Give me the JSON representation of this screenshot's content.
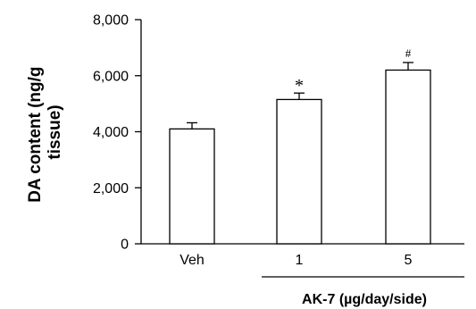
{
  "chart_data": {
    "type": "bar",
    "categories": [
      "Veh",
      "1",
      "5"
    ],
    "values": [
      4100,
      5150,
      6200
    ],
    "errors": [
      220,
      230,
      270
    ],
    "significance": [
      "",
      "*",
      "#"
    ],
    "title": "",
    "xlabel": "",
    "ylabel_lines": [
      "DA content (ng/g",
      "tissue)"
    ],
    "group_label": "AK-7 (µg/day/side)",
    "group_categories": [
      "1",
      "5"
    ],
    "ylim": [
      0,
      8000
    ],
    "yticks": [
      0,
      2000,
      4000,
      6000,
      8000
    ],
    "ytick_labels": [
      "0",
      "2,000",
      "4,000",
      "6,000",
      "8,000"
    ],
    "grid": false,
    "bar_fill": "#ffffff",
    "bar_stroke": "#000000"
  }
}
